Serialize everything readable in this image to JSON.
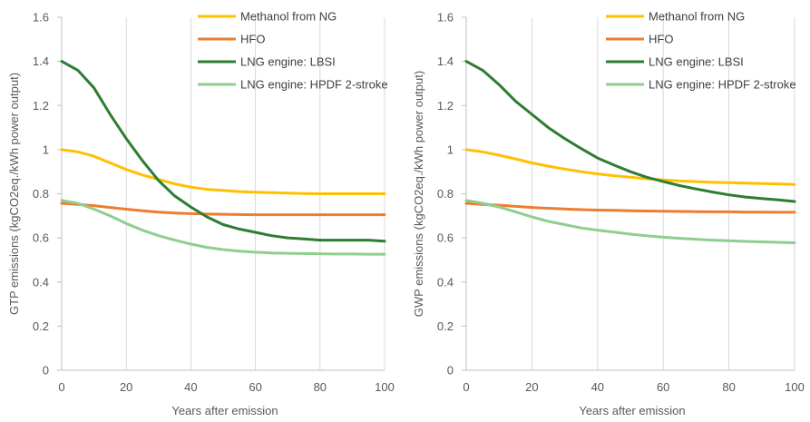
{
  "chart_data": [
    {
      "type": "line",
      "title": "",
      "xlabel": "Years after emission",
      "ylabel": "GTP emissions (kgCO2eq./kWh power output)",
      "xlim": [
        0,
        100
      ],
      "ylim": [
        0,
        1.6
      ],
      "xticks": [
        "0",
        "20",
        "40",
        "60",
        "80",
        "100"
      ],
      "yticks": [
        "0",
        "0.2",
        "0.4",
        "0.6",
        "0.8",
        "1",
        "1.2",
        "1.4",
        "1.6"
      ],
      "grid": "vertical",
      "legend_position": "top-right",
      "series": [
        {
          "name": "Methanol from NG",
          "color": "#ffc000",
          "x": [
            0,
            5,
            10,
            15,
            20,
            25,
            30,
            35,
            40,
            45,
            50,
            55,
            60,
            65,
            70,
            75,
            80,
            85,
            90,
            95,
            100
          ],
          "y": [
            1.0,
            0.99,
            0.97,
            0.94,
            0.91,
            0.885,
            0.865,
            0.845,
            0.83,
            0.82,
            0.815,
            0.81,
            0.807,
            0.805,
            0.803,
            0.801,
            0.8,
            0.8,
            0.8,
            0.8,
            0.8
          ]
        },
        {
          "name": "HFO",
          "color": "#ed7d31",
          "x": [
            0,
            5,
            10,
            15,
            20,
            25,
            30,
            35,
            40,
            45,
            50,
            55,
            60,
            65,
            70,
            75,
            80,
            85,
            90,
            95,
            100
          ],
          "y": [
            0.757,
            0.752,
            0.746,
            0.738,
            0.73,
            0.723,
            0.717,
            0.713,
            0.71,
            0.708,
            0.707,
            0.706,
            0.705,
            0.705,
            0.705,
            0.705,
            0.705,
            0.705,
            0.705,
            0.705,
            0.705
          ]
        },
        {
          "name": "LNG engine: LBSI",
          "color": "#2e7d32",
          "x": [
            0,
            5,
            10,
            15,
            20,
            25,
            30,
            35,
            40,
            45,
            50,
            55,
            60,
            65,
            70,
            75,
            80,
            85,
            90,
            95,
            100
          ],
          "y": [
            1.4,
            1.36,
            1.28,
            1.16,
            1.05,
            0.95,
            0.86,
            0.79,
            0.74,
            0.695,
            0.66,
            0.64,
            0.625,
            0.61,
            0.6,
            0.595,
            0.59,
            0.59,
            0.59,
            0.59,
            0.585
          ]
        },
        {
          "name": "LNG engine: HPDF 2-stroke",
          "color": "#8fce8f",
          "x": [
            0,
            5,
            10,
            15,
            20,
            25,
            30,
            35,
            40,
            45,
            50,
            55,
            60,
            65,
            70,
            75,
            80,
            85,
            90,
            95,
            100
          ],
          "y": [
            0.77,
            0.757,
            0.73,
            0.7,
            0.665,
            0.635,
            0.61,
            0.59,
            0.572,
            0.557,
            0.547,
            0.54,
            0.535,
            0.532,
            0.53,
            0.529,
            0.528,
            0.527,
            0.527,
            0.526,
            0.526
          ]
        }
      ]
    },
    {
      "type": "line",
      "title": "",
      "xlabel": "Years after emission",
      "ylabel": "GWP emissions (kgCO2eq./kWh power output)",
      "xlim": [
        0,
        100
      ],
      "ylim": [
        0,
        1.6
      ],
      "xticks": [
        "0",
        "20",
        "40",
        "60",
        "80",
        "100"
      ],
      "yticks": [
        "0",
        "0.2",
        "0.4",
        "0.6",
        "0.8",
        "1",
        "1.2",
        "1.4",
        "1.6"
      ],
      "grid": "vertical",
      "legend_position": "top-right",
      "series": [
        {
          "name": "Methanol from NG",
          "color": "#ffc000",
          "x": [
            0,
            5,
            10,
            15,
            20,
            25,
            30,
            35,
            40,
            45,
            50,
            55,
            60,
            65,
            70,
            75,
            80,
            85,
            90,
            95,
            100
          ],
          "y": [
            1.0,
            0.99,
            0.975,
            0.958,
            0.94,
            0.925,
            0.912,
            0.9,
            0.89,
            0.882,
            0.875,
            0.868,
            0.863,
            0.858,
            0.855,
            0.852,
            0.85,
            0.848,
            0.846,
            0.844,
            0.842
          ]
        },
        {
          "name": "HFO",
          "color": "#ed7d31",
          "x": [
            0,
            5,
            10,
            15,
            20,
            25,
            30,
            35,
            40,
            45,
            50,
            55,
            60,
            65,
            70,
            75,
            80,
            85,
            90,
            95,
            100
          ],
          "y": [
            0.757,
            0.752,
            0.748,
            0.743,
            0.738,
            0.734,
            0.731,
            0.728,
            0.726,
            0.725,
            0.723,
            0.722,
            0.721,
            0.72,
            0.719,
            0.718,
            0.718,
            0.717,
            0.717,
            0.716,
            0.716
          ]
        },
        {
          "name": "LNG engine: LBSI",
          "color": "#2e7d32",
          "x": [
            0,
            5,
            10,
            15,
            20,
            25,
            30,
            35,
            40,
            45,
            50,
            55,
            60,
            65,
            70,
            75,
            80,
            85,
            90,
            95,
            100
          ],
          "y": [
            1.4,
            1.36,
            1.295,
            1.22,
            1.16,
            1.1,
            1.05,
            1.005,
            0.962,
            0.93,
            0.9,
            0.875,
            0.855,
            0.837,
            0.822,
            0.808,
            0.795,
            0.785,
            0.778,
            0.772,
            0.765
          ]
        },
        {
          "name": "LNG engine: HPDF 2-stroke",
          "color": "#8fce8f",
          "x": [
            0,
            5,
            10,
            15,
            20,
            25,
            30,
            35,
            40,
            45,
            50,
            55,
            60,
            65,
            70,
            75,
            80,
            85,
            90,
            95,
            100
          ],
          "y": [
            0.77,
            0.757,
            0.74,
            0.718,
            0.695,
            0.675,
            0.66,
            0.645,
            0.635,
            0.626,
            0.617,
            0.609,
            0.603,
            0.598,
            0.594,
            0.59,
            0.587,
            0.584,
            0.582,
            0.58,
            0.578
          ]
        }
      ]
    }
  ]
}
